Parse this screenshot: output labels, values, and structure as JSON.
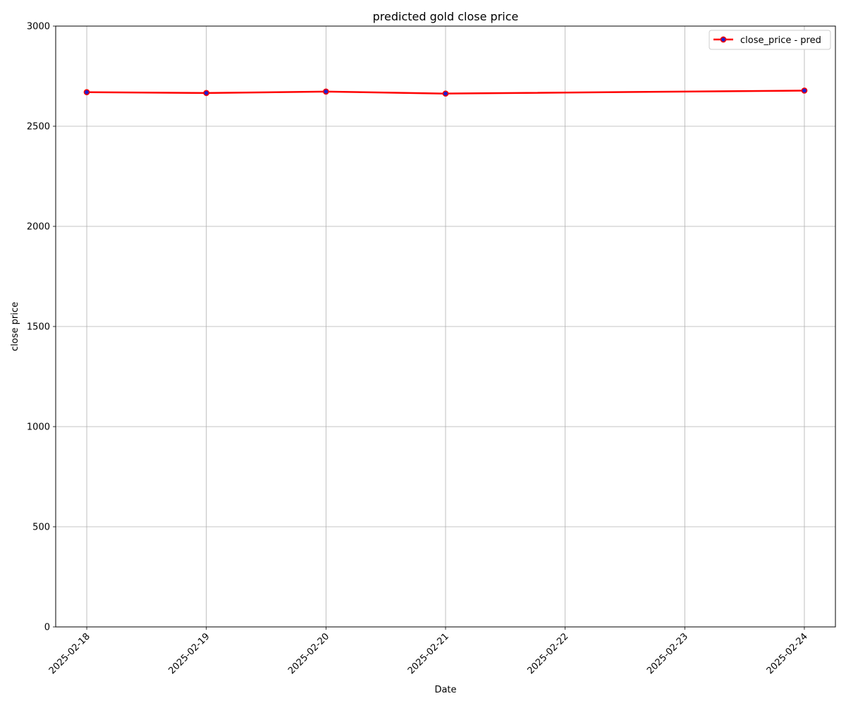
{
  "chart_data": {
    "type": "line",
    "title": "predicted gold close price",
    "xlabel": "Date",
    "ylabel": "close price",
    "x": [
      "2025-02-18",
      "2025-02-19",
      "2025-02-20",
      "2025-02-21",
      "2025-02-24"
    ],
    "x_ticks": [
      "2025-02-18",
      "2025-02-19",
      "2025-02-20",
      "2025-02-21",
      "2025-02-22",
      "2025-02-23",
      "2025-02-24"
    ],
    "xlim": [
      "2025-02-17T17:46",
      "2025-02-24T06:14"
    ],
    "ylim": [
      0,
      3000
    ],
    "y_ticks": [
      0,
      500,
      1000,
      1500,
      2000,
      2500,
      3000
    ],
    "grid": true,
    "legend_position": "upper right",
    "series": [
      {
        "name": "close_price - pred",
        "values": [
          2670,
          2666,
          2673,
          2663,
          2678
        ],
        "line_color": "#ff0000",
        "marker_color": "#1f1fd0"
      }
    ]
  }
}
